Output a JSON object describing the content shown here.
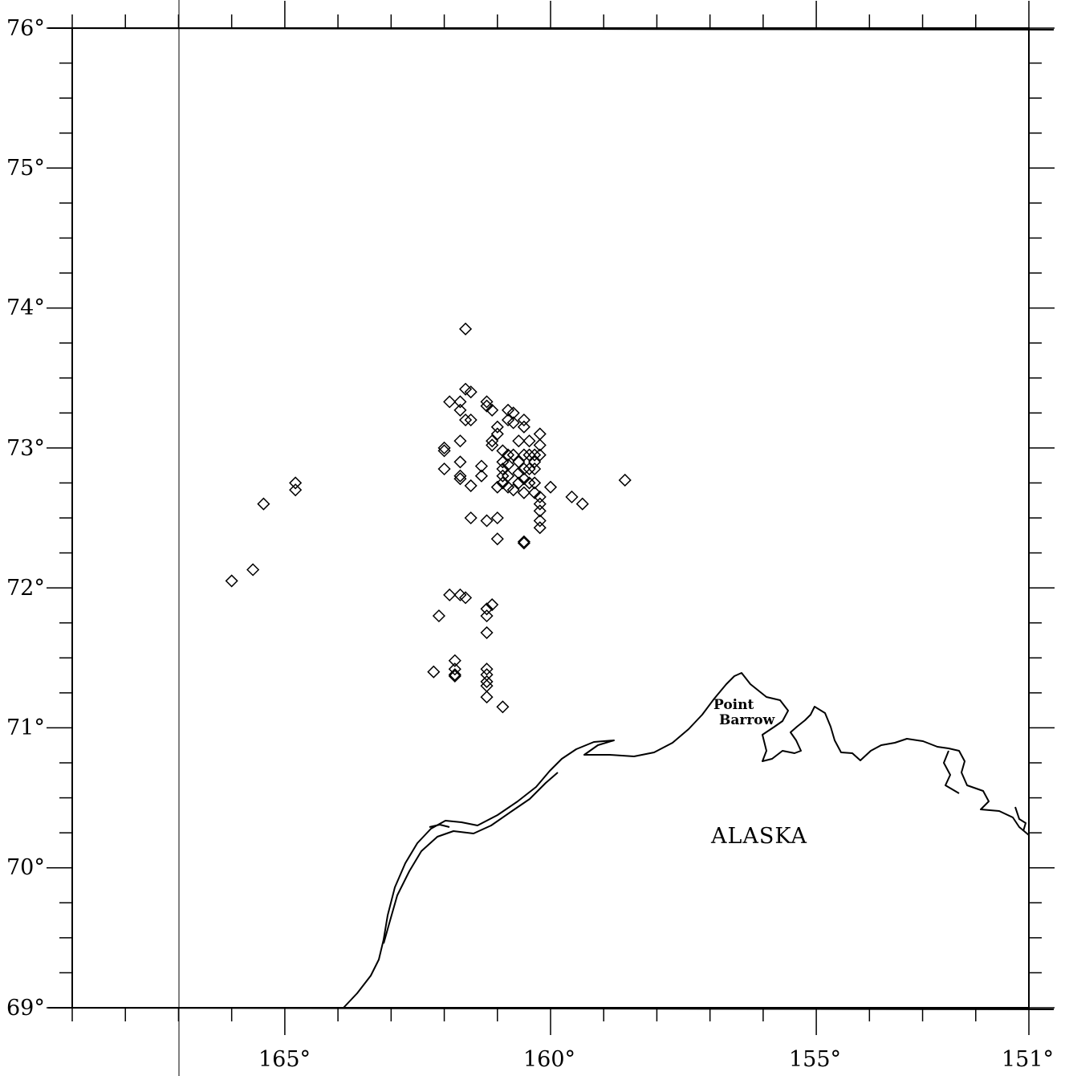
{
  "map": {
    "lat_labels": [
      "76°",
      "75°",
      "74°",
      "73°",
      "72°",
      "71°",
      "70°",
      "69°"
    ],
    "lon_labels": [
      "165°",
      "160°",
      "155°",
      "151°"
    ],
    "place_labels": {
      "point_line1": "Point",
      "point_line2": "Barrow",
      "region": "ALASKA"
    },
    "colors": {
      "ink": "#000000",
      "background": "#ffffff"
    },
    "marker_shape": "diamond"
  },
  "chart_data": {
    "type": "scatter",
    "xlim": [
      169,
      151
    ],
    "ylim": [
      69,
      76
    ],
    "x_tick_labels": [
      "165°",
      "160°",
      "155°",
      "151°"
    ],
    "y_tick_labels": [
      "76°",
      "75°",
      "74°",
      "73°",
      "72°",
      "71°",
      "70°",
      "69°"
    ],
    "series": [
      {
        "points": [
          [
            161.6,
            73.85
          ],
          [
            161.6,
            73.42
          ],
          [
            161.5,
            73.4
          ],
          [
            161.9,
            73.33
          ],
          [
            161.7,
            73.33
          ],
          [
            161.7,
            73.27
          ],
          [
            161.2,
            73.33
          ],
          [
            161.2,
            73.3
          ],
          [
            161.1,
            73.27
          ],
          [
            160.8,
            73.27
          ],
          [
            160.8,
            73.2
          ],
          [
            160.7,
            73.25
          ],
          [
            160.7,
            73.18
          ],
          [
            160.5,
            73.2
          ],
          [
            160.5,
            73.15
          ],
          [
            161.0,
            73.15
          ],
          [
            161.0,
            73.1
          ],
          [
            161.5,
            73.2
          ],
          [
            161.6,
            73.2
          ],
          [
            161.7,
            73.05
          ],
          [
            162.0,
            73.0
          ],
          [
            162.0,
            72.98
          ],
          [
            161.7,
            72.9
          ],
          [
            162.0,
            72.85
          ],
          [
            161.7,
            72.8
          ],
          [
            161.7,
            72.78
          ],
          [
            161.5,
            72.73
          ],
          [
            161.3,
            72.8
          ],
          [
            161.3,
            72.87
          ],
          [
            161.1,
            73.05
          ],
          [
            161.1,
            73.02
          ],
          [
            160.9,
            72.98
          ],
          [
            160.9,
            72.9
          ],
          [
            160.9,
            72.85
          ],
          [
            160.9,
            72.8
          ],
          [
            160.9,
            72.75
          ],
          [
            161.0,
            72.72
          ],
          [
            160.8,
            72.95
          ],
          [
            160.8,
            72.88
          ],
          [
            160.8,
            72.8
          ],
          [
            160.8,
            72.72
          ],
          [
            160.7,
            72.7
          ],
          [
            160.7,
            72.95
          ],
          [
            160.6,
            73.05
          ],
          [
            160.6,
            72.9
          ],
          [
            160.6,
            72.82
          ],
          [
            160.6,
            72.75
          ],
          [
            160.5,
            72.95
          ],
          [
            160.5,
            72.85
          ],
          [
            160.5,
            72.78
          ],
          [
            160.5,
            72.68
          ],
          [
            160.4,
            73.05
          ],
          [
            160.4,
            72.95
          ],
          [
            160.4,
            72.85
          ],
          [
            160.4,
            72.75
          ],
          [
            160.3,
            72.95
          ],
          [
            160.3,
            72.9
          ],
          [
            160.3,
            72.85
          ],
          [
            160.3,
            72.75
          ],
          [
            160.3,
            72.68
          ],
          [
            160.2,
            73.1
          ],
          [
            160.2,
            73.02
          ],
          [
            160.2,
            72.95
          ],
          [
            160.2,
            72.65
          ],
          [
            160.2,
            72.6
          ],
          [
            160.2,
            72.55
          ],
          [
            160.2,
            72.48
          ],
          [
            160.2,
            72.43
          ],
          [
            160.0,
            72.72
          ],
          [
            159.6,
            72.65
          ],
          [
            159.4,
            72.6
          ],
          [
            161.5,
            72.5
          ],
          [
            161.2,
            72.48
          ],
          [
            161.0,
            72.5
          ],
          [
            161.0,
            72.35
          ],
          [
            160.5,
            72.32
          ],
          [
            160.5,
            72.33
          ],
          [
            158.6,
            72.77
          ],
          [
            164.8,
            72.75
          ],
          [
            164.8,
            72.7
          ],
          [
            165.4,
            72.6
          ],
          [
            166.0,
            72.05
          ],
          [
            165.6,
            72.13
          ],
          [
            161.9,
            71.95
          ],
          [
            161.7,
            71.95
          ],
          [
            161.6,
            71.93
          ],
          [
            162.1,
            71.8
          ],
          [
            161.1,
            71.88
          ],
          [
            161.2,
            71.85
          ],
          [
            161.2,
            71.8
          ],
          [
            161.2,
            71.68
          ],
          [
            161.8,
            71.48
          ],
          [
            161.8,
            71.42
          ],
          [
            161.8,
            71.38
          ],
          [
            161.8,
            71.37
          ],
          [
            162.2,
            71.4
          ],
          [
            161.2,
            71.42
          ],
          [
            161.2,
            71.38
          ],
          [
            161.2,
            71.33
          ],
          [
            161.2,
            71.3
          ],
          [
            161.2,
            71.22
          ],
          [
            160.9,
            71.15
          ]
        ]
      }
    ],
    "annotations": [
      "Point Barrow",
      "ALASKA"
    ],
    "grid": false
  }
}
